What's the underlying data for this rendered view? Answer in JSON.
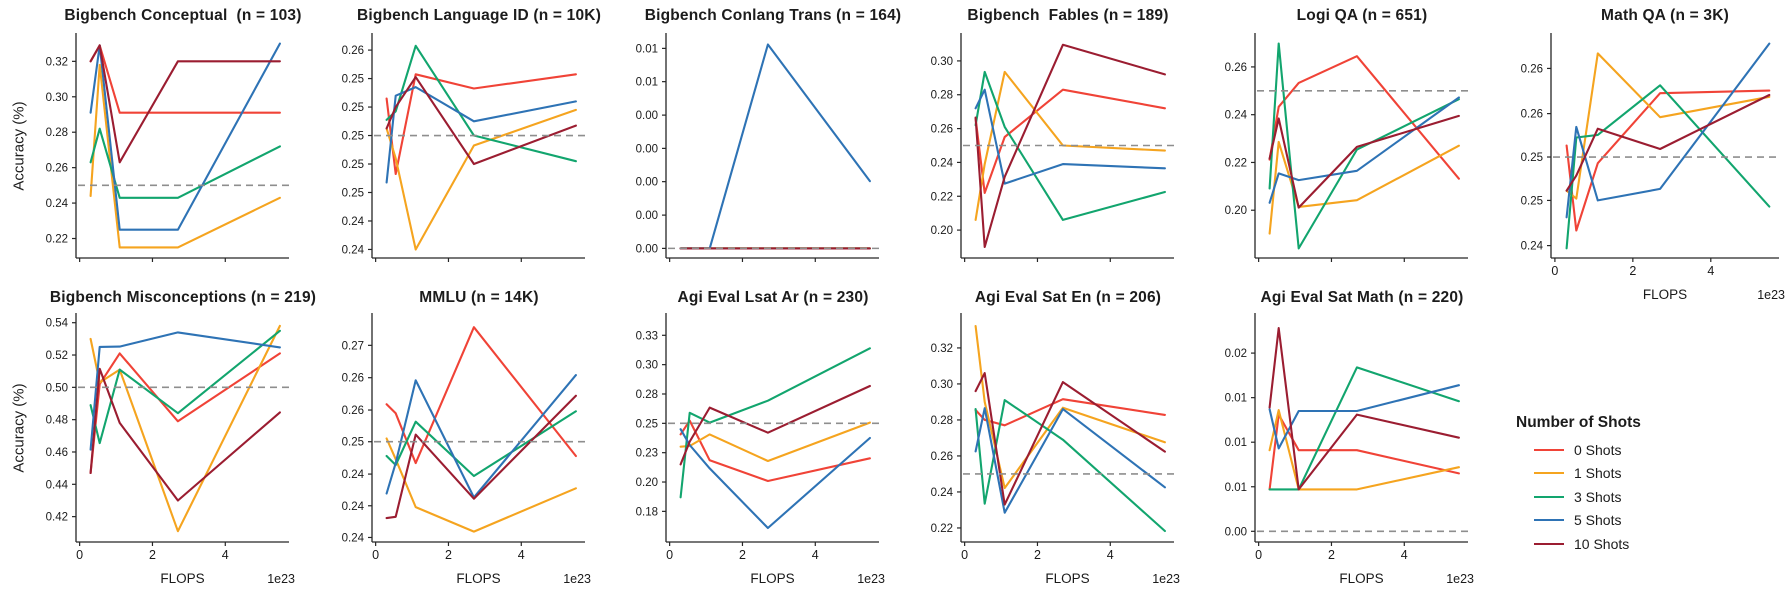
{
  "chart_data": {
    "type": "line",
    "ylabel": "Accuracy (%)",
    "x_axis": {
      "label": "FLOPS",
      "offset_text": "1e23",
      "xlim": [
        -0.1,
        5.75
      ],
      "ticks": [
        {
          "v": 0,
          "label": "0"
        },
        {
          "v": 2,
          "label": "2"
        },
        {
          "v": 4,
          "label": "4"
        }
      ],
      "points": [
        0.3,
        0.55,
        1.1,
        2.7,
        5.5
      ]
    },
    "baseline_color": "#8e8e8e",
    "series_colors": [
      "#f04337",
      "#f5a41f",
      "#12a56e",
      "#2e73b5",
      "#9b1d31"
    ],
    "legend": {
      "title": "Number of Shots",
      "entries": [
        "0 Shots",
        "1 Shots",
        "3 Shots",
        "5 Shots",
        "10 Shots"
      ]
    },
    "charts": [
      {
        "id": "bigbench-conceptual",
        "title": "Bigbench Conceptual  (n = 103)",
        "row": 0,
        "col": 0,
        "has_ylabel": true,
        "x_labels": false,
        "ylim": [
          0.209,
          0.336
        ],
        "baseline": 0.25,
        "ytick_values": [
          0.32,
          0.3,
          0.28,
          0.26,
          0.24,
          0.22
        ],
        "ytick_labels": [
          "0.32",
          "0.30",
          "0.28",
          "0.26",
          "0.24",
          "0.22"
        ],
        "series": [
          [
            0.32,
            0.329,
            0.291,
            0.291,
            0.291
          ],
          [
            0.244,
            0.318,
            0.215,
            0.215,
            0.243
          ],
          [
            0.263,
            0.282,
            0.243,
            0.243,
            0.272
          ],
          [
            0.291,
            0.329,
            0.225,
            0.225,
            0.33
          ],
          [
            0.32,
            0.329,
            0.263,
            0.32,
            0.32
          ]
        ]
      },
      {
        "id": "bigbench-language-id",
        "title": "Bigbench Language ID (n = 10K)",
        "row": 0,
        "col": 1,
        "has_ylabel": false,
        "x_labels": false,
        "ylim": [
          0.2414,
          0.2572
        ],
        "baseline": 0.25,
        "ytick_values": [
          0.256,
          0.254,
          0.252,
          0.25,
          0.248,
          0.246,
          0.244,
          0.242
        ],
        "ytick_labels": [
          "0.26",
          "0.25",
          "0.25",
          "0.25",
          "0.25",
          "0.25",
          "0.24",
          "0.24"
        ],
        "series": [
          [
            0.2526,
            0.2473,
            0.2543,
            0.2533,
            0.2543
          ],
          [
            0.2505,
            0.2484,
            0.242,
            0.2493,
            0.2518
          ],
          [
            0.2511,
            0.2517,
            0.2563,
            0.25,
            0.2482
          ],
          [
            0.2467,
            0.2528,
            0.2534,
            0.251,
            0.2524
          ],
          [
            0.2505,
            0.252,
            0.2541,
            0.248,
            0.2507
          ]
        ]
      },
      {
        "id": "bigbench-conlang-trans",
        "title": "Bigbench Conlang Trans (n = 164)",
        "row": 0,
        "col": 2,
        "has_ylabel": false,
        "x_labels": false,
        "ylim": [
          -0.0005,
          0.0112
        ],
        "baseline": 0.0,
        "ytick_values": [
          0.0104,
          0.00867,
          0.00693,
          0.0052,
          0.00347,
          0.00173,
          0.0
        ],
        "ytick_labels": [
          "0.01",
          "0.01",
          "0.00",
          "0.00",
          "0.00",
          "0.00",
          "0.00"
        ],
        "series": [
          [
            0.0,
            0.0,
            0.0,
            0.0,
            0.0
          ],
          [
            0.0,
            0.0,
            0.0,
            0.0,
            0.0
          ],
          [
            0.0,
            0.0,
            0.0,
            0.0,
            0.0
          ],
          [
            0.0,
            0.0,
            0.0,
            0.0106,
            0.0035
          ],
          [
            0.0,
            0.0,
            0.0,
            0.0,
            0.0
          ]
        ]
      },
      {
        "id": "bigbench-fables",
        "title": "Bigbench  Fables (n = 189)",
        "row": 0,
        "col": 3,
        "has_ylabel": false,
        "x_labels": false,
        "ylim": [
          0.1835,
          0.3165
        ],
        "baseline": 0.25,
        "ytick_values": [
          0.3,
          0.28,
          0.26,
          0.24,
          0.22,
          0.2
        ],
        "ytick_labels": [
          "0.30",
          "0.28",
          "0.26",
          "0.24",
          "0.22",
          "0.20"
        ],
        "series": [
          [
            0.266,
            0.222,
            0.255,
            0.283,
            0.272
          ],
          [
            0.206,
            0.239,
            0.2935,
            0.25,
            0.247
          ],
          [
            0.262,
            0.2935,
            0.261,
            0.206,
            0.2225
          ],
          [
            0.272,
            0.283,
            0.2275,
            0.239,
            0.2365
          ],
          [
            0.2665,
            0.19,
            0.2315,
            0.3095,
            0.292
          ]
        ]
      },
      {
        "id": "logi-qa",
        "title": "Logi QA (n = 651)",
        "row": 0,
        "col": 4,
        "has_ylabel": false,
        "x_labels": false,
        "ylim": [
          0.18,
          0.2742
        ],
        "baseline": 0.25,
        "ytick_values": [
          0.26,
          0.24,
          0.22,
          0.2
        ],
        "ytick_labels": [
          "0.26",
          "0.24",
          "0.22",
          "0.20"
        ],
        "series": [
          [
            0.2212,
            0.2433,
            0.2533,
            0.2645,
            0.2132
          ],
          [
            0.1902,
            0.2286,
            0.2014,
            0.2042,
            0.227
          ],
          [
            0.2091,
            0.2698,
            0.184,
            0.2254,
            0.2465
          ],
          [
            0.2031,
            0.2154,
            0.2126,
            0.2165,
            0.2472
          ],
          [
            0.2216,
            0.2384,
            0.2011,
            0.2265,
            0.2395
          ]
        ]
      },
      {
        "id": "math-qa",
        "title": "Math QA (n = 3K)",
        "row": 0,
        "col": 5,
        "has_ylabel": false,
        "x_labels": true,
        "ylim": [
          0.2386,
          0.264
        ],
        "baseline": 0.25,
        "ytick_values": [
          0.26,
          0.2549,
          0.25,
          0.2451,
          0.24
        ],
        "ytick_labels": [
          "0.26",
          "0.26",
          "0.25",
          "0.25",
          "0.24"
        ],
        "series": [
          [
            0.2513,
            0.2417,
            0.2493,
            0.2572,
            0.2575
          ],
          [
            0.2462,
            0.2453,
            0.2617,
            0.2545,
            0.2568
          ],
          [
            0.2397,
            0.2522,
            0.2525,
            0.2581,
            0.2444
          ],
          [
            0.2432,
            0.2534,
            0.2451,
            0.2464,
            0.2628
          ],
          [
            0.2462,
            0.2479,
            0.2532,
            0.2509,
            0.257
          ]
        ]
      },
      {
        "id": "bigbench-misconceptions",
        "title": "Bigbench Misconceptions (n = 219)",
        "row": 1,
        "col": 0,
        "has_ylabel": true,
        "x_labels": true,
        "ylim": [
          0.4043,
          0.546
        ],
        "baseline": 0.5,
        "ytick_values": [
          0.54,
          0.52,
          0.5,
          0.48,
          0.46,
          0.44,
          0.42
        ],
        "ytick_labels": [
          "0.54",
          "0.52",
          "0.50",
          "0.48",
          "0.46",
          "0.44",
          "0.42"
        ],
        "series": [
          [
            0.447,
            0.502,
            0.521,
            0.479,
            0.521
          ],
          [
            0.53,
            0.503,
            0.511,
            0.411,
            0.538
          ],
          [
            0.489,
            0.4655,
            0.511,
            0.484,
            0.535
          ],
          [
            0.4615,
            0.525,
            0.5252,
            0.534,
            0.5247
          ],
          [
            0.447,
            0.5115,
            0.478,
            0.43,
            0.4845
          ]
        ]
      },
      {
        "id": "mmlu",
        "title": "MMLU (n = 14K)",
        "row": 1,
        "col": 1,
        "has_ylabel": false,
        "x_labels": true,
        "ylim": [
          0.2345,
          0.2699
        ],
        "baseline": 0.25,
        "ytick_values": [
          0.2649,
          0.2599,
          0.2549,
          0.25,
          0.245,
          0.2401,
          0.2352
        ],
        "ytick_labels": [
          "0.27",
          "0.26",
          "0.26",
          "0.25",
          "0.24",
          "0.24",
          "0.24"
        ],
        "series": [
          [
            0.2558,
            0.2544,
            0.2467,
            0.2677,
            0.2478
          ],
          [
            0.2505,
            0.2473,
            0.2399,
            0.2361,
            0.2428
          ],
          [
            0.2478,
            0.2464,
            0.2531,
            0.2447,
            0.2547
          ],
          [
            0.242,
            0.2467,
            0.2595,
            0.2414,
            0.2603
          ],
          [
            0.2382,
            0.2384,
            0.2511,
            0.2412,
            0.2571
          ]
        ]
      },
      {
        "id": "agi-eval-lsat-ar",
        "title": "Agi Eval Lsat Ar (n = 230)",
        "row": 1,
        "col": 2,
        "has_ylabel": false,
        "x_labels": true,
        "ylim": [
          0.1489,
          0.344
        ],
        "baseline": 0.25,
        "ytick_values": [
          0.325,
          0.3,
          0.275,
          0.25,
          0.225,
          0.2,
          0.175
        ],
        "ytick_labels": [
          "0.33",
          "0.30",
          "0.28",
          "0.25",
          "0.23",
          "0.20",
          "0.18"
        ],
        "series": [
          [
            0.2406,
            0.2523,
            0.2185,
            0.2009,
            0.2202
          ],
          [
            0.2301,
            0.2307,
            0.2406,
            0.2179,
            0.2506
          ],
          [
            0.187,
            0.259,
            0.2506,
            0.2693,
            0.3139
          ],
          [
            0.245,
            0.2315,
            0.2116,
            0.1608,
            0.2375
          ],
          [
            0.215,
            0.2344,
            0.2634,
            0.242,
            0.2818
          ]
        ]
      },
      {
        "id": "agi-eval-sat-en",
        "title": "Agi Eval Sat En (n = 206)",
        "row": 1,
        "col": 3,
        "has_ylabel": false,
        "x_labels": true,
        "ylim": [
          0.2122,
          0.3394
        ],
        "baseline": 0.25,
        "ytick_values": [
          0.32,
          0.3,
          0.28,
          0.26,
          0.24,
          0.22
        ],
        "ytick_labels": [
          "0.32",
          "0.30",
          "0.28",
          "0.26",
          "0.24",
          "0.22"
        ],
        "series": [
          [
            0.2855,
            0.28,
            0.277,
            0.2915,
            0.2828
          ],
          [
            0.3322,
            0.29,
            0.2422,
            0.2868,
            0.2676
          ],
          [
            0.286,
            0.2335,
            0.291,
            0.269,
            0.2183
          ],
          [
            0.2625,
            0.2865,
            0.2285,
            0.286,
            0.2426
          ],
          [
            0.296,
            0.306,
            0.233,
            0.301,
            0.2624
          ]
        ]
      },
      {
        "id": "agi-eval-sat-math",
        "title": "Agi Eval Sat Math (n = 220)",
        "row": 1,
        "col": 4,
        "has_ylabel": false,
        "x_labels": true,
        "ylim": [
          -0.0012,
          0.0245
        ],
        "baseline": 0.0,
        "ytick_values": [
          0.02,
          0.015,
          0.01,
          0.005,
          0.0
        ],
        "ytick_labels": [
          "0.02",
          "0.01",
          "0.01",
          "0.01",
          "0.00"
        ],
        "series": [
          [
            0.0047,
            0.0131,
            0.0091,
            0.0091,
            0.0065
          ],
          [
            0.0091,
            0.0136,
            0.0047,
            0.0047,
            0.0072
          ],
          [
            0.0047,
            0.0047,
            0.0047,
            0.0184,
            0.0146
          ],
          [
            0.0137,
            0.0093,
            0.0135,
            0.0135,
            0.0164
          ],
          [
            0.0139,
            0.0228,
            0.0047,
            0.0131,
            0.0105
          ]
        ]
      }
    ]
  }
}
